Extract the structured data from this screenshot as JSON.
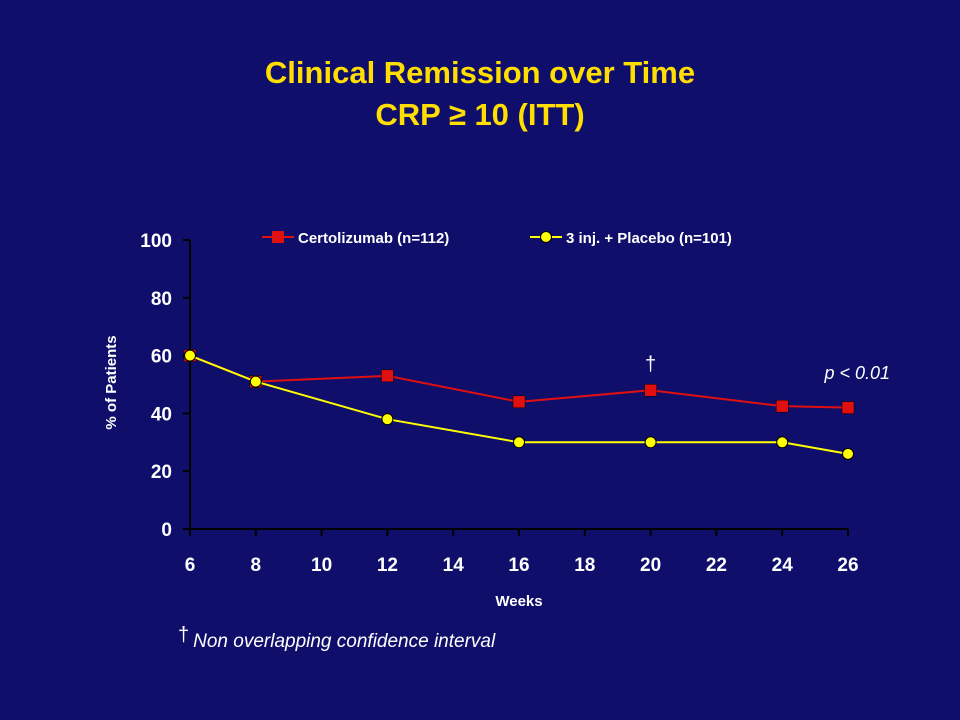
{
  "slide": {
    "title_line1": "Clinical Remission over Time",
    "title_line2": "CRP ≥ 10 (ITT)",
    "footnote_symbol": "†",
    "footnote_text": "Non overlapping confidence interval"
  },
  "chart_data": {
    "type": "line",
    "xlabel": "Weeks",
    "ylabel": "% of Patients",
    "xlim": [
      6,
      26
    ],
    "ylim": [
      0,
      100
    ],
    "x_ticks": [
      6,
      8,
      10,
      12,
      14,
      16,
      18,
      20,
      22,
      24,
      26
    ],
    "y_ticks": [
      0,
      20,
      40,
      60,
      80,
      100
    ],
    "grid": false,
    "legend_position": "top",
    "series": [
      {
        "name": "Certolizumab (n=112)",
        "color": "#e01010",
        "marker": "square",
        "x": [
          6,
          8,
          12,
          16,
          20,
          24,
          26
        ],
        "y": [
          60,
          51,
          53,
          44,
          48,
          42.5,
          42
        ]
      },
      {
        "name": "3 inj. + Placebo (n=101)",
        "color": "#ffff00",
        "marker": "circle",
        "x": [
          6,
          8,
          12,
          16,
          20,
          24,
          26
        ],
        "y": [
          60,
          51,
          38,
          30,
          30,
          30,
          26
        ]
      }
    ],
    "annotations": [
      {
        "text": "†",
        "x": 20,
        "y": 48
      },
      {
        "text": "p < 0.01",
        "x": 26,
        "y": 53
      }
    ]
  }
}
